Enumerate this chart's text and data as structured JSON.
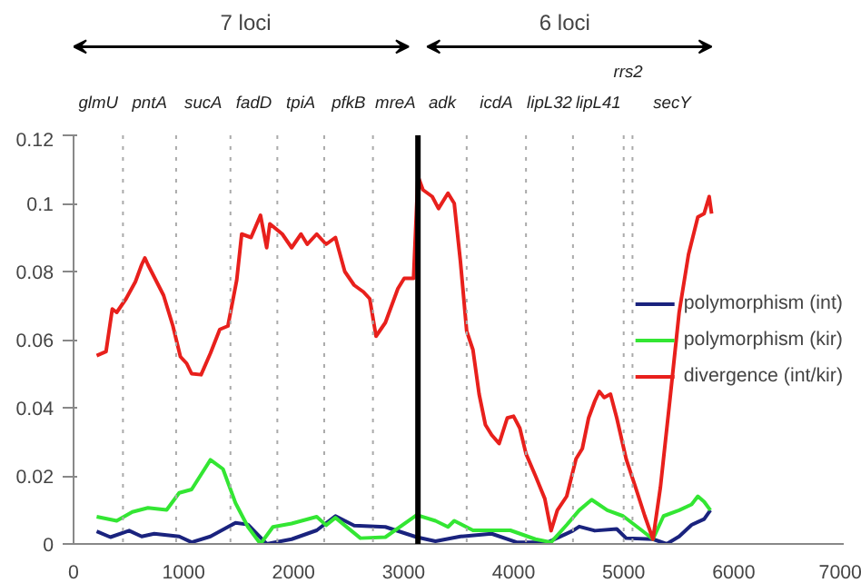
{
  "chart_data": {
    "type": "line",
    "x": [
      210,
      295,
      352,
      392,
      477,
      562,
      619,
      648,
      676,
      818,
      903,
      971,
      1028,
      1073,
      1159,
      1244,
      1329,
      1403,
      1483,
      1528,
      1613,
      1699,
      1755,
      1784,
      1897,
      1982,
      2067,
      2124,
      2210,
      2295,
      2380,
      2465,
      2550,
      2635,
      2692,
      2749,
      2834,
      2948,
      3005,
      3090,
      3130,
      3175,
      3260,
      3317,
      3403,
      3460,
      3516,
      3573,
      3630,
      3686,
      3743,
      3800,
      3868,
      3942,
      3999,
      4056,
      4112,
      4198,
      4283,
      4340,
      4397,
      4482,
      4567,
      4624,
      4681,
      4738,
      4778,
      4823,
      4880,
      4937,
      5022,
      5107,
      5192,
      5266,
      5334,
      5419,
      5504,
      5589,
      5674,
      5731,
      5777,
      5799
    ],
    "series": [
      {
        "name": "polymorphism (int)",
        "color": "#1a237e",
        "x": [
          210,
          335,
          505,
          619,
          733,
          960,
          1073,
          1244,
          1472,
          1585,
          1755,
          1982,
          2210,
          2380,
          2550,
          2834,
          3119,
          3289,
          3516,
          3800,
          4027,
          4312,
          4539,
          4596,
          4738,
          4937,
          5022,
          5266,
          5391,
          5504,
          5617,
          5731,
          5788
        ],
        "values": [
          0.0037,
          0.002,
          0.0039,
          0.0022,
          0.003,
          0.0022,
          0.0005,
          0.0022,
          0.0062,
          0.0057,
          0.0,
          0.0014,
          0.004,
          0.0082,
          0.0054,
          0.005,
          0.002,
          0.0008,
          0.0022,
          0.003,
          0.0005,
          0.0005,
          0.0039,
          0.0051,
          0.0039,
          0.0044,
          0.0017,
          0.0014,
          0.0,
          0.0022,
          0.0056,
          0.0073,
          0.0099
        ]
      },
      {
        "name": "polymorphism (kir)",
        "color": "#33e633",
        "x": [
          210,
          392,
          534,
          676,
          846,
          960,
          1073,
          1244,
          1358,
          1472,
          1585,
          1699,
          1812,
          1982,
          2210,
          2295,
          2380,
          2607,
          2834,
          3119,
          3289,
          3403,
          3460,
          3630,
          3800,
          3970,
          4198,
          4340,
          4482,
          4596,
          4709,
          4851,
          4994,
          5164,
          5266,
          5362,
          5504,
          5617,
          5674,
          5731,
          5788
        ],
        "values": [
          0.008,
          0.0068,
          0.0094,
          0.0106,
          0.01,
          0.015,
          0.016,
          0.0247,
          0.022,
          0.012,
          0.005,
          0.0,
          0.005,
          0.006,
          0.008,
          0.0055,
          0.0077,
          0.0017,
          0.002,
          0.0085,
          0.0068,
          0.005,
          0.0068,
          0.004,
          0.004,
          0.004,
          0.0014,
          0.0005,
          0.0056,
          0.0099,
          0.013,
          0.0099,
          0.0082,
          0.004,
          0.0014,
          0.0082,
          0.0099,
          0.0116,
          0.014,
          0.0124,
          0.0099
        ]
      },
      {
        "name": "divergence (int/kir)",
        "color": "#e8201c",
        "values": [
          0.0553,
          0.0565,
          0.069,
          0.068,
          0.072,
          0.077,
          0.082,
          0.084,
          0.082,
          0.073,
          0.064,
          0.055,
          0.053,
          0.05,
          0.0497,
          0.056,
          0.063,
          0.064,
          0.0775,
          0.091,
          0.09,
          0.0965,
          0.087,
          0.094,
          0.091,
          0.087,
          0.091,
          0.088,
          0.091,
          0.088,
          0.09,
          0.08,
          0.076,
          0.074,
          0.072,
          0.061,
          0.065,
          0.075,
          0.078,
          0.078,
          0.108,
          0.104,
          0.102,
          0.0985,
          0.103,
          0.1,
          0.083,
          0.0625,
          0.057,
          0.044,
          0.035,
          0.032,
          0.0295,
          0.037,
          0.0375,
          0.034,
          0.0265,
          0.02,
          0.0133,
          0.0039,
          0.0099,
          0.014,
          0.025,
          0.028,
          0.037,
          0.042,
          0.0448,
          0.043,
          0.044,
          0.037,
          0.025,
          0.0167,
          0.0082,
          0.0014,
          0.0167,
          0.042,
          0.068,
          0.085,
          0.096,
          0.097,
          0.102,
          0.097
        ]
      }
    ],
    "xlim": [
      0,
      7000
    ],
    "xticks": [
      0,
      1000,
      2000,
      3000,
      4000,
      5000,
      6000,
      7000
    ],
    "ylim": [
      0,
      0.12
    ],
    "yticks": [
      0,
      0.02,
      0.04,
      0.06,
      0.08,
      0.1,
      0.12
    ],
    "legend": "right",
    "grid": false,
    "line_style": "solid",
    "ref_lines": [
      {
        "axis": "x",
        "value": 449,
        "color": "#aaaaaa",
        "line_style": "dotted"
      },
      {
        "axis": "x",
        "value": 932,
        "color": "#aaaaaa",
        "line_style": "dotted"
      },
      {
        "axis": "x",
        "value": 1426,
        "color": "#aaaaaa",
        "line_style": "dotted"
      },
      {
        "axis": "x",
        "value": 1852,
        "color": "#aaaaaa",
        "line_style": "dotted"
      },
      {
        "axis": "x",
        "value": 2278,
        "color": "#aaaaaa",
        "line_style": "dotted"
      },
      {
        "axis": "x",
        "value": 2721,
        "color": "#aaaaaa",
        "line_style": "dotted"
      },
      {
        "axis": "x",
        "value": 3130,
        "color": "#000000",
        "line_style": "solid"
      },
      {
        "axis": "x",
        "value": 3573,
        "color": "#aaaaaa",
        "line_style": "dotted"
      },
      {
        "axis": "x",
        "value": 4112,
        "color": "#aaaaaa",
        "line_style": "dotted"
      },
      {
        "axis": "x",
        "value": 4539,
        "color": "#aaaaaa",
        "line_style": "dotted"
      },
      {
        "axis": "x",
        "value": 5000,
        "color": "#aaaaaa",
        "line_style": "dotted"
      },
      {
        "axis": "x",
        "value": 5080,
        "color": "#aaaaaa",
        "line_style": "dotted"
      }
    ],
    "annotations": [
      "glmU",
      "pntA",
      "sucA",
      "fadD",
      "tpiA",
      "pfkB",
      "mreA",
      "adk",
      "icdA",
      "lipL32",
      "lipL41",
      "rrs2",
      "secY",
      "7 loci",
      "6 loci"
    ]
  }
}
